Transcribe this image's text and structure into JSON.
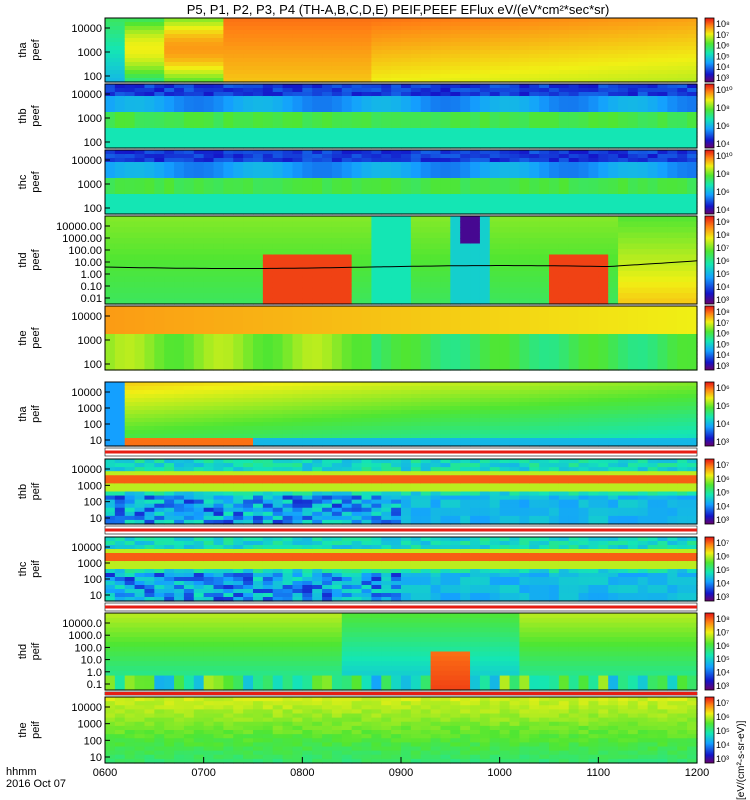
{
  "title": "P5, P1, P2, P3, P4 (TH-A,B,C,D,E) PEIF,PEEF EFlux eV/(eV*cm²*sec*sr)",
  "x_axis": {
    "row_label": "hhmm",
    "date_label": "2016 Oct 07",
    "ticks": [
      "0600",
      "0700",
      "0800",
      "0900",
      "1000",
      "1100",
      "1200"
    ]
  },
  "colorbar_unit": "[eV/(cm²-s-sr-eV)]",
  "colors": {
    "low": "#1414c8",
    "mid": "#32c85a",
    "high": "#e61e14",
    "max": "#ffffff",
    "black": "#000000"
  },
  "chart_data": {
    "type": "heatmap",
    "x_range": [
      "0600",
      "1200"
    ],
    "panels": [
      {
        "id": "tha_peef",
        "label": "tha\npeef",
        "yticks": [
          "10000",
          "1000",
          "100"
        ],
        "cticks": [
          "10⁸",
          "10⁷",
          "10⁶",
          "10⁵",
          "10⁴",
          "10³"
        ],
        "scale": "log"
      },
      {
        "id": "thb_peef",
        "label": "thb\npeef",
        "yticks": [
          "10000",
          "1000",
          "100"
        ],
        "cticks": [
          "10¹⁰",
          "10⁸",
          "10⁶",
          "10⁴"
        ],
        "scale": "log"
      },
      {
        "id": "thc_peef",
        "label": "thc\npeef",
        "yticks": [
          "10000",
          "1000",
          "100"
        ],
        "cticks": [
          "10¹⁰",
          "10⁸",
          "10⁶",
          "10⁴"
        ],
        "scale": "log"
      },
      {
        "id": "thd_peef",
        "label": "thd\npeef",
        "yticks": [
          "10000.00",
          "1000.00",
          "100.00",
          "10.00",
          "1.00",
          "0.10",
          "0.01"
        ],
        "cticks": [
          "10⁹",
          "10⁸",
          "10⁷",
          "10⁶",
          "10⁵",
          "10⁴",
          "10³"
        ],
        "scale": "log",
        "line": "spacecraft potential"
      },
      {
        "id": "the_peef",
        "label": "the\npeef",
        "yticks": [
          "10000",
          "1000",
          "100"
        ],
        "cticks": [
          "10⁸",
          "10⁷",
          "10⁶",
          "10⁵",
          "10⁴",
          "10³"
        ],
        "scale": "log"
      },
      {
        "id": "tha_peif",
        "label": "tha\npeif",
        "yticks": [
          "10000",
          "1000",
          "100",
          "10"
        ],
        "cticks": [
          "10⁶",
          "10⁵",
          "10⁴",
          "10³"
        ],
        "scale": "log"
      },
      {
        "id": "thb_peif",
        "label": "thb\npeif",
        "yticks": [
          "10000",
          "1000",
          "100",
          "10"
        ],
        "cticks": [
          "10⁷",
          "10⁶",
          "10⁵",
          "10⁴",
          "10³"
        ],
        "scale": "log"
      },
      {
        "id": "thc_peif",
        "label": "thc\npeif",
        "yticks": [
          "10000",
          "1000",
          "100",
          "10"
        ],
        "cticks": [
          "10⁷",
          "10⁶",
          "10⁵",
          "10⁴",
          "10³"
        ],
        "scale": "log"
      },
      {
        "id": "thd_peif",
        "label": "thd\npeif",
        "yticks": [
          "10000.0",
          "1000.0",
          "100.0",
          "10.0",
          "1.0",
          "0.1"
        ],
        "cticks": [
          "10⁸",
          "10⁷",
          "10⁶",
          "10⁵",
          "10⁴",
          "10³"
        ],
        "scale": "log"
      },
      {
        "id": "the_peif",
        "label": "the\npeif",
        "yticks": [
          "10000",
          "1000",
          "100",
          "10"
        ],
        "cticks": [
          "10⁷",
          "10⁶",
          "10⁵",
          "10⁴",
          "10³"
        ],
        "scale": "log"
      }
    ]
  }
}
